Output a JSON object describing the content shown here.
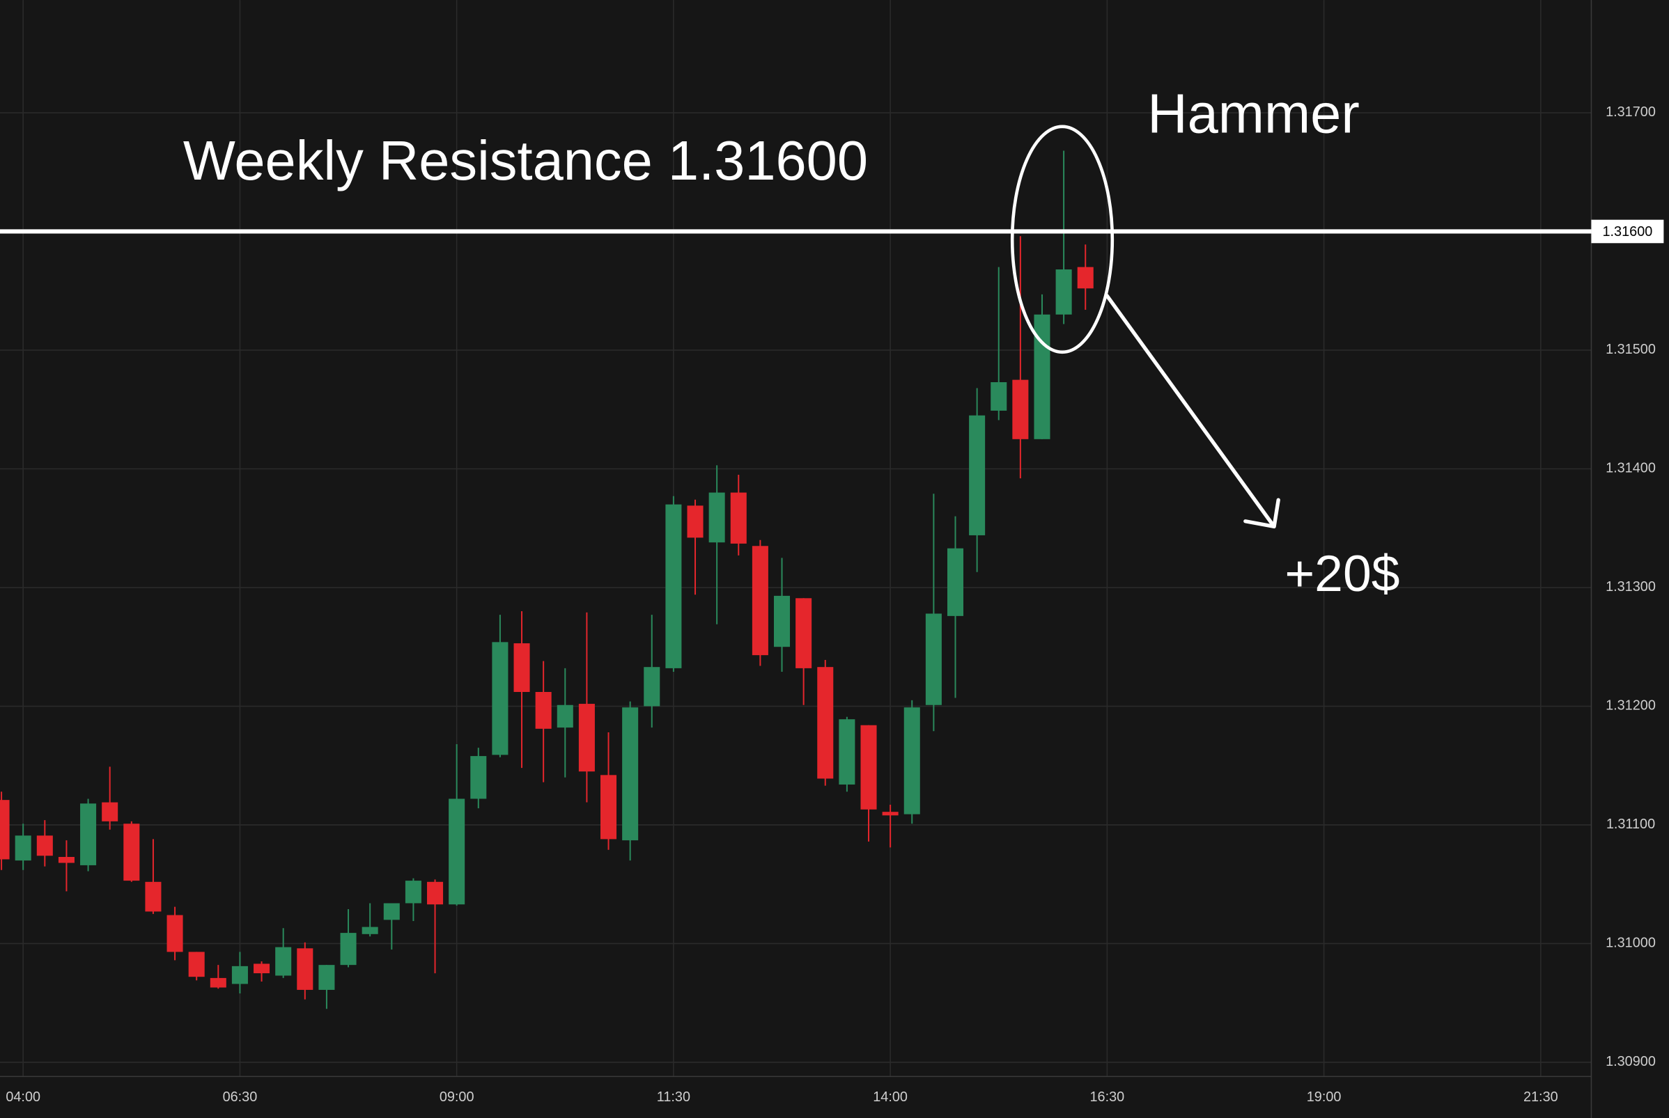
{
  "chart_data": {
    "type": "candlestick",
    "x": [
      225,
      240,
      255,
      270,
      285,
      300,
      315,
      330,
      345,
      360,
      375,
      390,
      405,
      420,
      435,
      450,
      465,
      480,
      495,
      510,
      525,
      540,
      555,
      570,
      585,
      600,
      615,
      630,
      645,
      660,
      675,
      690,
      705,
      720,
      735,
      750,
      765,
      780,
      795,
      810,
      825,
      840,
      855,
      870,
      885,
      900,
      915,
      930,
      945,
      960,
      975
    ],
    "open": [
      1.31121,
      1.3107,
      1.31091,
      1.31073,
      1.31066,
      1.31119,
      1.31101,
      1.31052,
      1.31024,
      1.30993,
      1.30971,
      1.30966,
      1.30983,
      1.30973,
      1.30996,
      1.30961,
      1.30982,
      1.31008,
      1.3102,
      1.31034,
      1.31052,
      1.31033,
      1.31122,
      1.31159,
      1.31253,
      1.31212,
      1.31182,
      1.31202,
      1.31142,
      1.31087,
      1.312,
      1.31232,
      1.31369,
      1.31338,
      1.3138,
      1.31335,
      1.3125,
      1.31291,
      1.31233,
      1.31134,
      1.31184,
      1.31111,
      1.31109,
      1.31201,
      1.31276,
      1.31344,
      1.31449,
      1.31475,
      1.31425,
      1.3153,
      1.3157
    ],
    "high": [
      1.31128,
      1.31101,
      1.31104,
      1.31087,
      1.31122,
      1.31149,
      1.31103,
      1.31088,
      1.31031,
      1.30993,
      1.30982,
      1.30993,
      1.30985,
      1.31013,
      1.31001,
      1.30982,
      1.31029,
      1.31034,
      1.31034,
      1.31055,
      1.31054,
      1.31168,
      1.31165,
      1.31277,
      1.3128,
      1.31238,
      1.31232,
      1.31279,
      1.31178,
      1.31204,
      1.31277,
      1.31377,
      1.31374,
      1.31403,
      1.31395,
      1.3134,
      1.31325,
      1.31291,
      1.31239,
      1.31191,
      1.31184,
      1.31117,
      1.31205,
      1.31379,
      1.3136,
      1.31468,
      1.3157,
      1.31596,
      1.31547,
      1.31668,
      1.31589
    ],
    "low": [
      1.31062,
      1.31062,
      1.31065,
      1.31044,
      1.31061,
      1.31096,
      1.31052,
      1.31025,
      1.30986,
      1.30969,
      1.30962,
      1.30958,
      1.30968,
      1.30971,
      1.30953,
      1.30945,
      1.3098,
      1.31006,
      1.30995,
      1.31019,
      1.30975,
      1.31032,
      1.31114,
      1.31157,
      1.31148,
      1.31136,
      1.3114,
      1.31119,
      1.31079,
      1.3107,
      1.31182,
      1.31229,
      1.31294,
      1.31269,
      1.31327,
      1.31234,
      1.31229,
      1.31201,
      1.31133,
      1.31128,
      1.31086,
      1.31081,
      1.31101,
      1.31179,
      1.31207,
      1.31313,
      1.31441,
      1.31392,
      1.31425,
      1.31522,
      1.31534
    ],
    "close": [
      1.31071,
      1.31091,
      1.31074,
      1.31068,
      1.31118,
      1.31103,
      1.31053,
      1.31027,
      1.30993,
      1.30972,
      1.30963,
      1.30981,
      1.30975,
      1.30997,
      1.30961,
      1.30982,
      1.31009,
      1.31014,
      1.31034,
      1.31053,
      1.31033,
      1.31122,
      1.31158,
      1.31254,
      1.31212,
      1.31181,
      1.31201,
      1.31145,
      1.31088,
      1.31199,
      1.31233,
      1.3137,
      1.31342,
      1.3138,
      1.31337,
      1.31243,
      1.31293,
      1.31232,
      1.31139,
      1.31189,
      1.31113,
      1.31108,
      1.31199,
      1.31278,
      1.31333,
      1.31445,
      1.31473,
      1.31425,
      1.3153,
      1.31568,
      1.31552
    ],
    "up_color": "#2a8a5c",
    "down_color": "#e5262c",
    "xlim": [
      224,
      1325
    ],
    "xticks": [
      {
        "value": 240,
        "label": "04:00"
      },
      {
        "value": 390,
        "label": "06:30"
      },
      {
        "value": 540,
        "label": "09:00"
      },
      {
        "value": 690,
        "label": "11:30"
      },
      {
        "value": 840,
        "label": "14:00"
      },
      {
        "value": 990,
        "label": "16:30"
      },
      {
        "value": 1140,
        "label": "19:00"
      },
      {
        "value": 1290,
        "label": "21:30"
      }
    ],
    "ylim": [
      1.30888,
      1.31795
    ],
    "yticks": [
      {
        "value": 1.309,
        "label": "1.30900"
      },
      {
        "value": 1.31,
        "label": "1.31000"
      },
      {
        "value": 1.311,
        "label": "1.31100"
      },
      {
        "value": 1.312,
        "label": "1.31200"
      },
      {
        "value": 1.313,
        "label": "1.31300"
      },
      {
        "value": 1.314,
        "label": "1.31400"
      },
      {
        "value": 1.315,
        "label": "1.31500"
      },
      {
        "value": 1.317,
        "label": "1.31700"
      }
    ],
    "grid": true,
    "resistance": {
      "value": 1.316,
      "label": "1.31600"
    },
    "annotations": [
      "Weekly Resistance 1.31600",
      "Hammer",
      "+20$"
    ]
  }
}
